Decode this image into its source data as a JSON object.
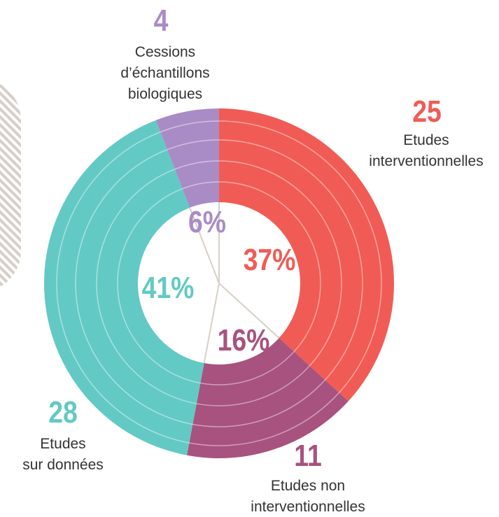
{
  "chart_data": {
    "type": "donut",
    "categories": [
      "Etudes\ninterventionnelles",
      "Etudes non\ninterventionnelles",
      "Etudes\nsur données",
      "Cessions\nd’échantillons\nbiologiques"
    ],
    "values": [
      25,
      11,
      28,
      4
    ],
    "percentage_labels": [
      "37%",
      "16%",
      "41%",
      "6%"
    ],
    "colors": [
      "#f05c55",
      "#a8527f",
      "#63c9c5",
      "#a98cc6"
    ]
  }
}
